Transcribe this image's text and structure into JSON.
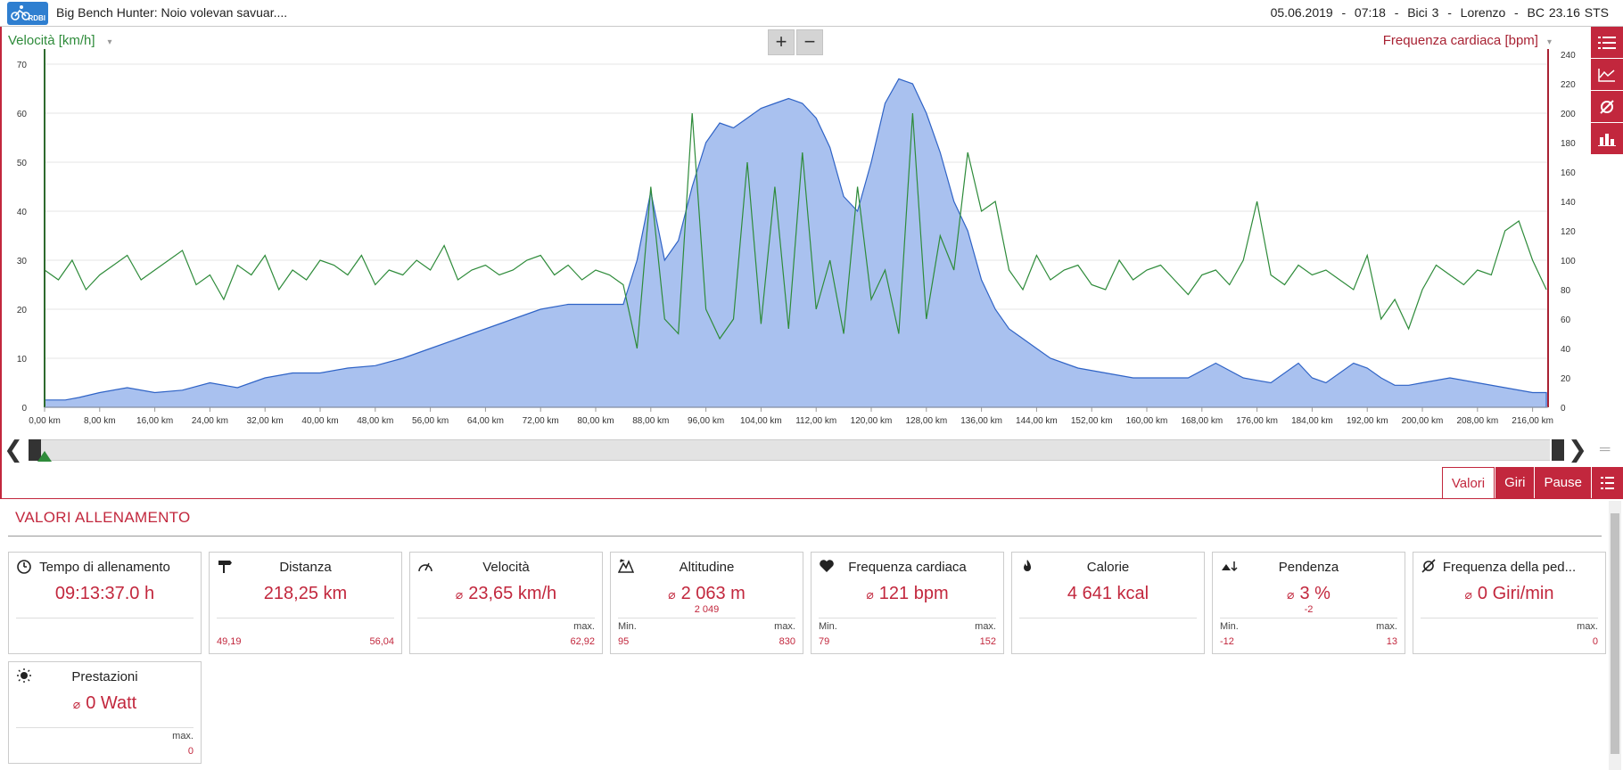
{
  "header": {
    "logo_text": "RDBI",
    "title": "Big Bench Hunter: Noio volevan savuar....",
    "date": "05.06.2019",
    "time": "07:18",
    "bike": "Bici 3",
    "user": "Lorenzo",
    "device": "BC 23.16 STS",
    "sep": "-"
  },
  "chart": {
    "left_axis_label": "Velocità [km/h]",
    "right_axis_label": "Frequenza cardiaca [bpm]",
    "zoom_in": "+",
    "zoom_out": "−"
  },
  "chart_data": {
    "type": "area",
    "xlabel": "",
    "x_tick_labels": [
      "0,00 km",
      "8,00 km",
      "16,00 km",
      "24,00 km",
      "32,00 km",
      "40,00 km",
      "48,00 km",
      "56,00 km",
      "64,00 km",
      "72,00 km",
      "80,00 km",
      "88,00 km",
      "96,00 km",
      "104,00 km",
      "112,00 km",
      "120,00 km",
      "128,00 km",
      "136,00 km",
      "144,00 km",
      "152,00 km",
      "160,00 km",
      "168,00 km",
      "176,00 km",
      "184,00 km",
      "192,00 km",
      "200,00 km",
      "208,00 km",
      "216,00 km"
    ],
    "xlim": [
      0,
      218.25
    ],
    "left_axis": {
      "label": "Velocità [km/h]",
      "ylim": [
        0,
        72
      ],
      "ticks": [
        0,
        10,
        20,
        30,
        40,
        50,
        60,
        70
      ]
    },
    "right_axis": {
      "label": "Frequenza cardiaca [bpm]",
      "ylim": [
        0,
        240
      ],
      "ticks": [
        0,
        20,
        40,
        60,
        80,
        100,
        120,
        140,
        160,
        180,
        200,
        220,
        240
      ]
    },
    "series": [
      {
        "kind": "filled-area",
        "axis": "left",
        "color": "#a9c1ef",
        "stroke": "#2f63c6",
        "x": [
          0,
          3,
          5,
          8,
          12,
          16,
          20,
          24,
          28,
          32,
          36,
          40,
          44,
          48,
          52,
          56,
          60,
          64,
          68,
          72,
          76,
          80,
          84,
          86,
          88,
          90,
          92,
          94,
          96,
          98,
          100,
          102,
          104,
          106,
          108,
          110,
          112,
          114,
          116,
          118,
          120,
          122,
          124,
          126,
          128,
          130,
          132,
          134,
          136,
          138,
          140,
          142,
          144,
          146,
          150,
          154,
          158,
          162,
          166,
          170,
          174,
          176,
          178,
          182,
          184,
          186,
          190,
          192,
          194,
          196,
          198,
          200,
          204,
          208,
          212,
          216,
          218
        ],
        "y": [
          1.5,
          1.5,
          2,
          3,
          4,
          3,
          3.5,
          5,
          4,
          6,
          7,
          7,
          8,
          8.5,
          10,
          12,
          14,
          16,
          18,
          20,
          21,
          21,
          21,
          30,
          44,
          30,
          34,
          45,
          54,
          58,
          57,
          59,
          61,
          62,
          63,
          62,
          59,
          53,
          43,
          40,
          50,
          62,
          67,
          66,
          60,
          52,
          42,
          36,
          26,
          20,
          16,
          14,
          12,
          10,
          8,
          7,
          6,
          6,
          6,
          9,
          6,
          5.5,
          5,
          9,
          6,
          5,
          9,
          8,
          6,
          4.5,
          4.5,
          5,
          6,
          5,
          4,
          3,
          3
        ]
      },
      {
        "kind": "line",
        "axis": "left",
        "color": "#2e8b3a",
        "x": [
          0,
          2,
          4,
          6,
          8,
          10,
          12,
          14,
          16,
          18,
          20,
          22,
          24,
          26,
          28,
          30,
          32,
          34,
          36,
          38,
          40,
          42,
          44,
          46,
          48,
          50,
          52,
          54,
          56,
          58,
          60,
          62,
          64,
          66,
          68,
          70,
          72,
          74,
          76,
          78,
          80,
          82,
          84,
          86,
          88,
          90,
          92,
          94,
          96,
          98,
          100,
          102,
          104,
          106,
          108,
          110,
          112,
          114,
          116,
          118,
          120,
          122,
          124,
          126,
          128,
          130,
          132,
          134,
          136,
          138,
          140,
          142,
          144,
          146,
          148,
          150,
          152,
          154,
          156,
          158,
          160,
          162,
          164,
          166,
          168,
          170,
          172,
          174,
          176,
          178,
          180,
          182,
          184,
          186,
          188,
          190,
          192,
          194,
          196,
          198,
          200,
          202,
          204,
          206,
          208,
          210,
          212,
          214,
          216,
          218
        ],
        "y": [
          28,
          26,
          30,
          24,
          27,
          29,
          31,
          26,
          28,
          30,
          32,
          25,
          27,
          22,
          29,
          27,
          31,
          24,
          28,
          26,
          30,
          29,
          27,
          31,
          25,
          28,
          27,
          30,
          28,
          33,
          26,
          28,
          29,
          27,
          28,
          30,
          31,
          27,
          29,
          26,
          28,
          27,
          25,
          12,
          45,
          18,
          15,
          60,
          20,
          14,
          18,
          50,
          17,
          45,
          16,
          52,
          20,
          30,
          15,
          45,
          22,
          28,
          15,
          60,
          18,
          35,
          28,
          52,
          40,
          42,
          28,
          24,
          31,
          26,
          28,
          29,
          25,
          24,
          30,
          26,
          28,
          29,
          26,
          23,
          27,
          28,
          25,
          30,
          42,
          27,
          25,
          29,
          27,
          28,
          26,
          24,
          31,
          18,
          22,
          16,
          24,
          29,
          27,
          25,
          28,
          27,
          36,
          38,
          30,
          24
        ]
      }
    ],
    "grid": true
  },
  "scroll": {
    "left": "❮",
    "right": "❯",
    "menu": "═"
  },
  "tabs": [
    {
      "label": "Valori",
      "active": true
    },
    {
      "label": "Giri",
      "active": false
    },
    {
      "label": "Pause",
      "active": false
    }
  ],
  "panel": {
    "title": "VALORI ALLENAMENTO"
  },
  "cards": [
    {
      "title": "Tempo di allenamento",
      "value": "09:13:37.0 h",
      "sub": "",
      "left_label": "",
      "right_label": "",
      "left_value": "",
      "right_value": ""
    },
    {
      "title": "Distanza",
      "value": "218,25 km",
      "sub": "",
      "left_label": "",
      "right_label": "",
      "left_value": "49,19",
      "right_value": "56,04"
    },
    {
      "title": "Velocità",
      "value": "23,65 km/h",
      "sub": "",
      "left_label": "",
      "right_label": "max.",
      "left_value": "",
      "right_value": "62,92"
    },
    {
      "title": "Altitudine",
      "value": "2 063 m",
      "sub": "2 049",
      "left_label": "Min.",
      "right_label": "max.",
      "left_value": "95",
      "right_value": "830"
    },
    {
      "title": "Frequenza cardiaca",
      "value": "121 bpm",
      "sub": "",
      "left_label": "Min.",
      "right_label": "max.",
      "left_value": "79",
      "right_value": "152"
    },
    {
      "title": "Calorie",
      "value": "4 641 kcal",
      "sub": "",
      "left_label": "",
      "right_label": "",
      "left_value": "",
      "right_value": ""
    },
    {
      "title": "Pendenza",
      "value": "3 %",
      "sub": "-2",
      "left_label": "Min.",
      "right_label": "max.",
      "left_value": "-12",
      "right_value": "13"
    },
    {
      "title": "Frequenza della ped...",
      "value": "0 Giri/min",
      "sub": "",
      "left_label": "",
      "right_label": "max.",
      "left_value": "",
      "right_value": "0"
    },
    {
      "title": "Prestazioni",
      "value": "0 Watt",
      "sub": "",
      "left_label": "",
      "right_label": "max.",
      "left_value": "",
      "right_value": "0"
    }
  ]
}
